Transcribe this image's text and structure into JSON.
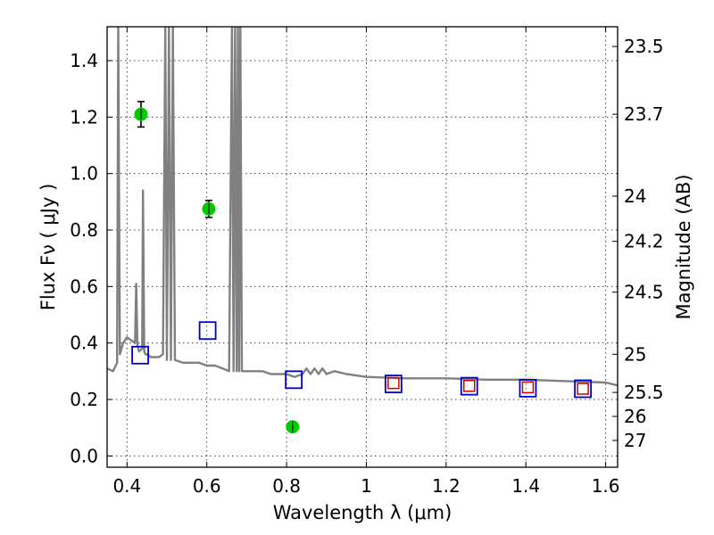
{
  "chart_data": {
    "type": "scatter",
    "title": "",
    "xlabel": "Wavelength  λ (μm)",
    "ylabel": "Flux  Fν  ( μJy )",
    "ylabel_right": "Magnitude (AB)",
    "xlim": [
      0.35,
      1.63
    ],
    "ylim": [
      -0.04,
      1.52
    ],
    "grid": true,
    "x_ticks": [
      0.4,
      0.6,
      0.8,
      1.0,
      1.2,
      1.4,
      1.6
    ],
    "x_tick_labels": [
      "0.4",
      "0.6",
      "0.8",
      "1",
      "1.2",
      "1.4",
      "1.6"
    ],
    "y_ticks": [
      0.0,
      0.2,
      0.4,
      0.6,
      0.8,
      1.0,
      1.2,
      1.4
    ],
    "y_tick_labels": [
      "0.0",
      "0.2",
      "0.4",
      "0.6",
      "0.8",
      "1.0",
      "1.2",
      "1.4"
    ],
    "right_ticks": [
      {
        "label": "23.5",
        "flux": 1.45
      },
      {
        "label": "23.7",
        "flux": 1.21
      },
      {
        "label": "24",
        "flux": 0.92
      },
      {
        "label": "24.2",
        "flux": 0.76
      },
      {
        "label": "24.5",
        "flux": 0.58
      },
      {
        "label": "25",
        "flux": 0.36
      },
      {
        "label": "25.5",
        "flux": 0.225
      },
      {
        "label": "26",
        "flux": 0.14
      },
      {
        "label": "27",
        "flux": 0.055
      }
    ],
    "series": [
      {
        "kind": "spectrum",
        "color": "#808080",
        "x": [
          0.35,
          0.365,
          0.375,
          0.378,
          0.382,
          0.386,
          0.39,
          0.4,
          0.41,
          0.42,
          0.423,
          0.426,
          0.43,
          0.438,
          0.44,
          0.443,
          0.446,
          0.45,
          0.46,
          0.47,
          0.48,
          0.49,
          0.496,
          0.5,
          0.505,
          0.51,
          0.515,
          0.52,
          0.54,
          0.56,
          0.58,
          0.6,
          0.62,
          0.64,
          0.656,
          0.663,
          0.667,
          0.671,
          0.675,
          0.678,
          0.681,
          0.684,
          0.688,
          0.692,
          0.7,
          0.72,
          0.74,
          0.76,
          0.78,
          0.8,
          0.82,
          0.84,
          0.85,
          0.86,
          0.87,
          0.88,
          0.89,
          0.9,
          0.92,
          0.95,
          1.0,
          1.1,
          1.2,
          1.3,
          1.4,
          1.5,
          1.6,
          1.63
        ],
        "y": [
          0.31,
          0.3,
          0.33,
          1.52,
          0.36,
          0.38,
          0.4,
          0.42,
          0.41,
          0.4,
          0.61,
          0.39,
          0.37,
          0.38,
          0.94,
          0.37,
          0.36,
          0.36,
          0.35,
          0.35,
          0.35,
          0.36,
          1.52,
          0.34,
          1.52,
          0.34,
          1.52,
          0.34,
          0.33,
          0.33,
          0.33,
          0.32,
          0.32,
          0.31,
          0.3,
          1.52,
          0.3,
          1.52,
          0.3,
          1.52,
          0.3,
          1.52,
          0.3,
          0.3,
          0.3,
          0.3,
          0.3,
          0.29,
          0.29,
          0.29,
          0.28,
          0.29,
          0.31,
          0.29,
          0.31,
          0.29,
          0.31,
          0.29,
          0.3,
          0.29,
          0.28,
          0.275,
          0.275,
          0.27,
          0.27,
          0.265,
          0.26,
          0.25
        ]
      },
      {
        "kind": "observed",
        "color": "#00cc00",
        "x": [
          0.435,
          0.605,
          0.815
        ],
        "y": [
          1.21,
          0.875,
          0.103
        ],
        "yerr": [
          0.045,
          0.03,
          0.015
        ]
      },
      {
        "kind": "model-photometry",
        "color": "#0000cc",
        "x": [
          0.433,
          0.602,
          0.818,
          1.068,
          1.258,
          1.405,
          1.543
        ],
        "y": [
          0.357,
          0.444,
          0.27,
          0.255,
          0.247,
          0.24,
          0.238
        ]
      },
      {
        "kind": "model-photometry-nir",
        "color": "#cc0000",
        "x": [
          1.068,
          1.258,
          1.405,
          1.543
        ],
        "y": [
          0.258,
          0.248,
          0.243,
          0.238
        ]
      }
    ]
  }
}
